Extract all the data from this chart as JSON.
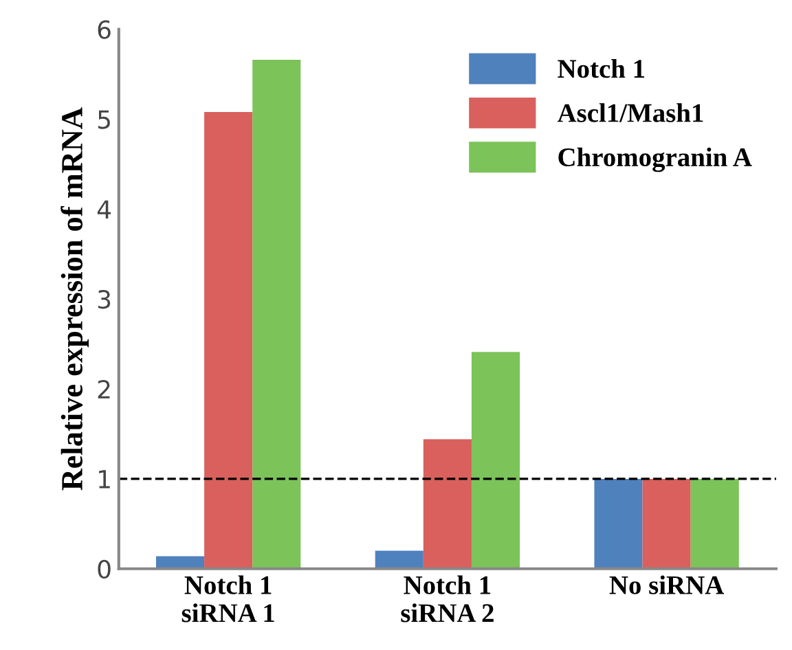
{
  "chart_data": {
    "type": "bar",
    "ylabel": "Relative expression of mRNA",
    "categories": [
      "Notch 1\nsiRNA 1",
      "Notch 1\nsiRNA 2",
      "No siRNA"
    ],
    "series": [
      {
        "name": "Notch 1",
        "color": "#4f81bd",
        "values": [
          0.14,
          0.2,
          1
        ]
      },
      {
        "name": "Ascl1/Mash1",
        "color": "#d9605c",
        "values": [
          5.08,
          1.44,
          1
        ]
      },
      {
        "name": "Chromogranin A",
        "color": "#7cc35a",
        "values": [
          5.66,
          2.41,
          1
        ]
      }
    ],
    "ylim": [
      0,
      6
    ],
    "yticks": [
      0,
      1,
      2,
      3,
      4,
      5,
      6
    ],
    "ref_lines": [
      {
        "axis": "y",
        "value": 1,
        "color": "#000000",
        "line_style": "dashed"
      }
    ],
    "grid": false,
    "legend": "top right"
  }
}
